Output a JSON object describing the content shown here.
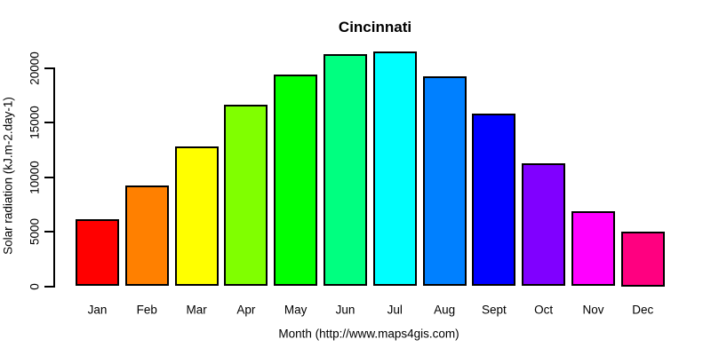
{
  "chart_data": {
    "type": "bar",
    "title": "Cincinnati",
    "xlabel": "Month (http://www.maps4gis.com)",
    "ylabel": "Solar radiation (kJ.m-2.day-1)",
    "categories": [
      "Jan",
      "Feb",
      "Mar",
      "Apr",
      "May",
      "Jun",
      "Jul",
      "Aug",
      "Sept",
      "Oct",
      "Nov",
      "Dec"
    ],
    "values": [
      6100,
      9200,
      12800,
      16600,
      19400,
      21300,
      21500,
      19200,
      15800,
      11300,
      6900,
      5000
    ],
    "bar_colors": [
      "#FF0000",
      "#FF8000",
      "#FFFF00",
      "#80FF00",
      "#00FF00",
      "#00FF80",
      "#00FFFF",
      "#0080FF",
      "#0000FF",
      "#8000FF",
      "#FF00FF",
      "#FF0080"
    ],
    "bar_border_color": "#000000",
    "yticks": [
      0,
      5000,
      10000,
      15000,
      20000
    ],
    "ylim": [
      0,
      20000
    ],
    "grid": false,
    "legend_position": "none",
    "background_color": "#FFFFFF",
    "axis_color": "#000000"
  }
}
